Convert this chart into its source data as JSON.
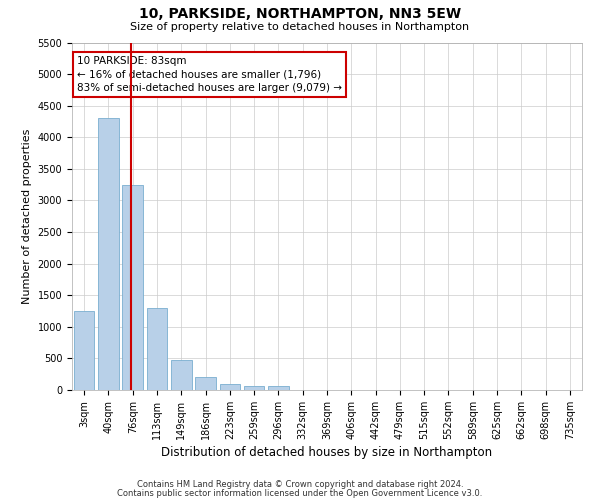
{
  "title": "10, PARKSIDE, NORTHAMPTON, NN3 5EW",
  "subtitle": "Size of property relative to detached houses in Northampton",
  "xlabel": "Distribution of detached houses by size in Northampton",
  "ylabel": "Number of detached properties",
  "footnote1": "Contains HM Land Registry data © Crown copyright and database right 2024.",
  "footnote2": "Contains public sector information licensed under the Open Government Licence v3.0.",
  "bar_color": "#b8d0e8",
  "bar_edge_color": "#7aaed0",
  "annotation_line1": "10 PARKSIDE: 83sqm",
  "annotation_line2": "← 16% of detached houses are smaller (1,796)",
  "annotation_line3": "83% of semi-detached houses are larger (9,079) →",
  "annotation_box_color": "#ffffff",
  "annotation_box_edge": "#cc0000",
  "vline_color": "#cc0000",
  "vline_x_index": 1,
  "ylim": [
    0,
    5500
  ],
  "yticks": [
    0,
    500,
    1000,
    1500,
    2000,
    2500,
    3000,
    3500,
    4000,
    4500,
    5000,
    5500
  ],
  "categories": [
    "3sqm",
    "40sqm",
    "76sqm",
    "113sqm",
    "149sqm",
    "186sqm",
    "223sqm",
    "259sqm",
    "296sqm",
    "332sqm",
    "369sqm",
    "406sqm",
    "442sqm",
    "479sqm",
    "515sqm",
    "552sqm",
    "589sqm",
    "625sqm",
    "662sqm",
    "698sqm",
    "735sqm"
  ],
  "values": [
    1250,
    4300,
    3250,
    1300,
    480,
    200,
    100,
    70,
    60,
    0,
    0,
    0,
    0,
    0,
    0,
    0,
    0,
    0,
    0,
    0,
    0
  ],
  "background_color": "#ffffff",
  "grid_color": "#cccccc",
  "title_fontsize": 10,
  "subtitle_fontsize": 8,
  "ylabel_fontsize": 8,
  "xlabel_fontsize": 8.5,
  "tick_fontsize": 7,
  "footnote_fontsize": 6,
  "annotation_fontsize": 7.5
}
